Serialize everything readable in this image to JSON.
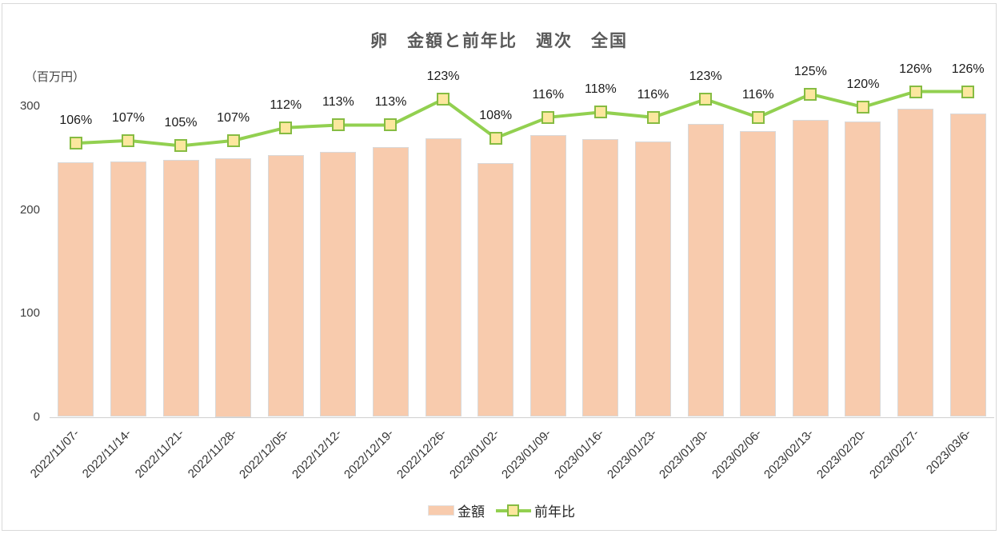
{
  "chart": {
    "title": "卵　金額と前年比　週次　全国",
    "unit_label": "（百万円）",
    "legend": [
      {
        "label": "金額",
        "type": "bar"
      },
      {
        "label": "前年比",
        "type": "line"
      }
    ]
  },
  "chart_data": {
    "type": "bar",
    "title": "卵 金額と前年比 週次 全国",
    "subtitle": "",
    "categories": [
      "2022/11/07-",
      "2022/11/14-",
      "2022/11/21-",
      "2022/11/28-",
      "2022/12/05-",
      "2022/12/12-",
      "2022/12/19-",
      "2022/12/26-",
      "2023/01/02-",
      "2023/01/09-",
      "2023/01/16-",
      "2023/01/23-",
      "2023/01/30-",
      "2023/02/06-",
      "2023/02/13-",
      "2023/02/20-",
      "2023/02/27-",
      "2023/03/6-"
    ],
    "series": [
      {
        "name": "金額",
        "type": "bar",
        "axis": "primary",
        "unit": "百万円",
        "values": [
          246,
          247,
          248,
          250,
          253,
          256,
          261,
          269,
          245,
          272,
          268,
          266,
          283,
          276,
          287,
          285,
          298,
          293
        ]
      },
      {
        "name": "前年比",
        "type": "line",
        "axis": "secondary",
        "unit": "%",
        "values": [
          106,
          107,
          105,
          107,
          112,
          113,
          113,
          123,
          108,
          116,
          118,
          116,
          123,
          116,
          125,
          120,
          126,
          126
        ],
        "labels": [
          "106%",
          "107%",
          "105%",
          "107%",
          "112%",
          "113%",
          "113%",
          "123%",
          "108%",
          "116%",
          "118%",
          "116%",
          "123%",
          "116%",
          "125%",
          "120%",
          "126%",
          "126%"
        ]
      }
    ],
    "xlabel": "",
    "ylabel": "（百万円）",
    "y_axis": {
      "ticks": [
        0,
        100,
        200,
        300
      ],
      "min": 0,
      "max": 350,
      "visible": true
    },
    "secondary_axis": {
      "min": 0,
      "max": 140,
      "visible": false
    },
    "grid": false,
    "legend_position": "bottom",
    "colors": {
      "bar_fill": "#f8cbad",
      "bar_border": "#d9d9d9",
      "line": "#92d050",
      "marker_fill": "#fce79e",
      "marker_border": "#86bc42",
      "title": "#595959"
    }
  }
}
